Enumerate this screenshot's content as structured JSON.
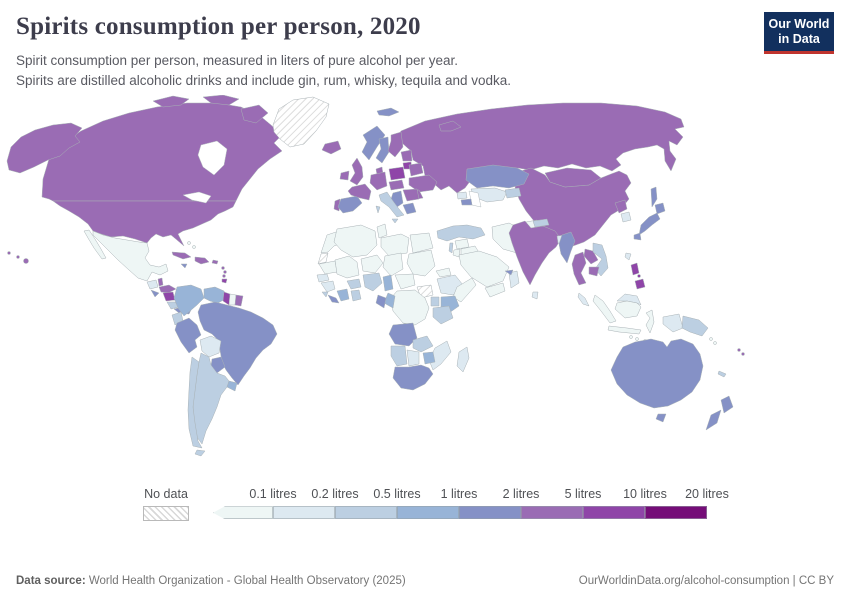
{
  "header": {
    "title": "Spirits consumption per person, 2020",
    "subtitle_line1": "Spirit consumption per person, measured in liters of pure alcohol per year.",
    "subtitle_line2": "Spirits are distilled alcoholic drinks and include gin, rum, whisky, tequila and vodka.",
    "logo": {
      "line1": "Our World",
      "line2": "in Data",
      "bg_color": "#12305e",
      "accent_color": "#c0342e"
    }
  },
  "legend": {
    "no_data_label": "No data",
    "tick_labels": [
      "0.1 litres",
      "0.2 litres",
      "0.5 litres",
      "1 litres",
      "2 litres",
      "5 litres",
      "10 litres",
      "20 litres"
    ],
    "bin_colors": [
      "#eef6f5",
      "#dde9f1",
      "#bccfe2",
      "#98b4d7",
      "#8591c6",
      "#9a6cb4",
      "#8f45a8",
      "#750d78"
    ],
    "no_data_pattern_color": "#d8d8d8"
  },
  "footer": {
    "source_label": "Data source:",
    "source_text": " World Health Organization - Global Health Observatory (2025)",
    "right_text": "OurWorldinData.org/alcohol-consumption | CC BY"
  },
  "chart_data": {
    "type": "choropleth",
    "title": "Spirits consumption per person, 2020",
    "unit": "liters of pure alcohol per year",
    "bin_edges": [
      0.1,
      0.2,
      0.5,
      1,
      2,
      5,
      10,
      20
    ],
    "bin_labels": [
      "<0.1",
      "0.1-0.2",
      "0.2-0.5",
      "0.5-1",
      "1-2",
      "2-5",
      "5-10",
      "10-20"
    ],
    "legend_position": "bottom",
    "no_data_regions": [
      "greenland",
      "western_sahara",
      "south_sudan"
    ],
    "region_bins": {
      "greenland": "no_data",
      "western_sahara": "no_data",
      "south_sudan": "no_data",
      "canada": 5,
      "arctic_islands": 5,
      "alaska": 5,
      "usa": 5,
      "hawaii": 5,
      "mexico": 0,
      "baja": 0,
      "bahamas": 0,
      "guatemala": 1,
      "belize": 5,
      "honduras": 5,
      "el_salvador": 4,
      "nicaragua": 6,
      "costa_rica": 2,
      "panama": 4,
      "cuba": 5,
      "jamaica": 4,
      "hispaniola": 5,
      "puerto_rico": 5,
      "lesser_antilles": 5,
      "trinidad": 6,
      "colombia": 3,
      "venezuela": 3,
      "guyana": 6,
      "suriname": 0,
      "french_guiana": 5,
      "ecuador": 2,
      "peru": 4,
      "brazil": 4,
      "bolivia": 1,
      "paraguay": 4,
      "uruguay": 3,
      "argentina": 2,
      "chile": 2,
      "tierra_del_fuego": 2,
      "morocco": 0,
      "mauritania": 0,
      "senegal": 1,
      "guinea": 1,
      "sierra_leone": 2,
      "liberia": 4,
      "cote_divoire": 3,
      "ghana": 2,
      "burkina_faso": 2,
      "mali": 0,
      "algeria": 0,
      "tunisia": 0,
      "libya": 0,
      "egypt": 0,
      "niger": 0,
      "chad": 0,
      "sudan": 0,
      "nigeria": 2,
      "cameroon": 3,
      "car": 0,
      "ethiopia": 1,
      "eritrea": 0,
      "somalia": 0,
      "kenya": 3,
      "uganda": 2,
      "drc": 0,
      "congo": 3,
      "gabon": 4,
      "tanzania": 2,
      "angola": 4,
      "zambia": 2,
      "mozambique": 1,
      "zimbabwe": 3,
      "namibia": 2,
      "botswana": 1,
      "south_africa": 4,
      "madagascar": 1,
      "iceland": 5,
      "ireland": 5,
      "uk": 5,
      "portugal": 5,
      "spain": 4,
      "france": 5,
      "norway": 4,
      "sweden": 4,
      "finland": 5,
      "denmark": 5,
      "germany": 5,
      "poland": 6,
      "czech_hungary": 5,
      "lithuania": 6,
      "latvia_estonia": 5,
      "belarus": 5,
      "ukraine": 5,
      "romania": 5,
      "west_balkans": 4,
      "serbia_bulgaria": 5,
      "greece": 4,
      "italy": 2,
      "svalbard": 4,
      "novaya_zemlya": 5,
      "russia": 5,
      "kazakhstan": 4,
      "central_asia": 1,
      "kyrgyzstan": 2,
      "georgia": 1,
      "armenia_azerbaijan": 4,
      "turkey": 2,
      "syria": 0,
      "iraq": 0,
      "israel": 2,
      "jordan": 0,
      "saudi_arabia": 0,
      "yemen": 0,
      "oman": 1,
      "uae": 4,
      "iran": 0,
      "afghanistan": 0,
      "pakistan": 0,
      "india": 5,
      "nepal": 2,
      "bangladesh": 1,
      "sri_lanka": 1,
      "china": 5,
      "mongolia": 5,
      "north_korea": 5,
      "south_korea": 1,
      "japan": 4,
      "sakhalin": 4,
      "taiwan": 1,
      "myanmar": 4,
      "thailand": 5,
      "laos": 5,
      "vietnam": 2,
      "cambodia": 5,
      "malaysia": 1,
      "philippines": 6,
      "sumatra": 0,
      "java": 0,
      "kalimantan": 0,
      "malaysia_borneo": 1,
      "sulawesi": 0,
      "lesser_sunda": 0,
      "west_papua": 1,
      "papua_new_guinea": 2,
      "solomon_islands": 0,
      "fiji": 5,
      "new_caledonia": 2,
      "australia": 4,
      "tasmania": 4,
      "new_zealand": 4
    }
  }
}
